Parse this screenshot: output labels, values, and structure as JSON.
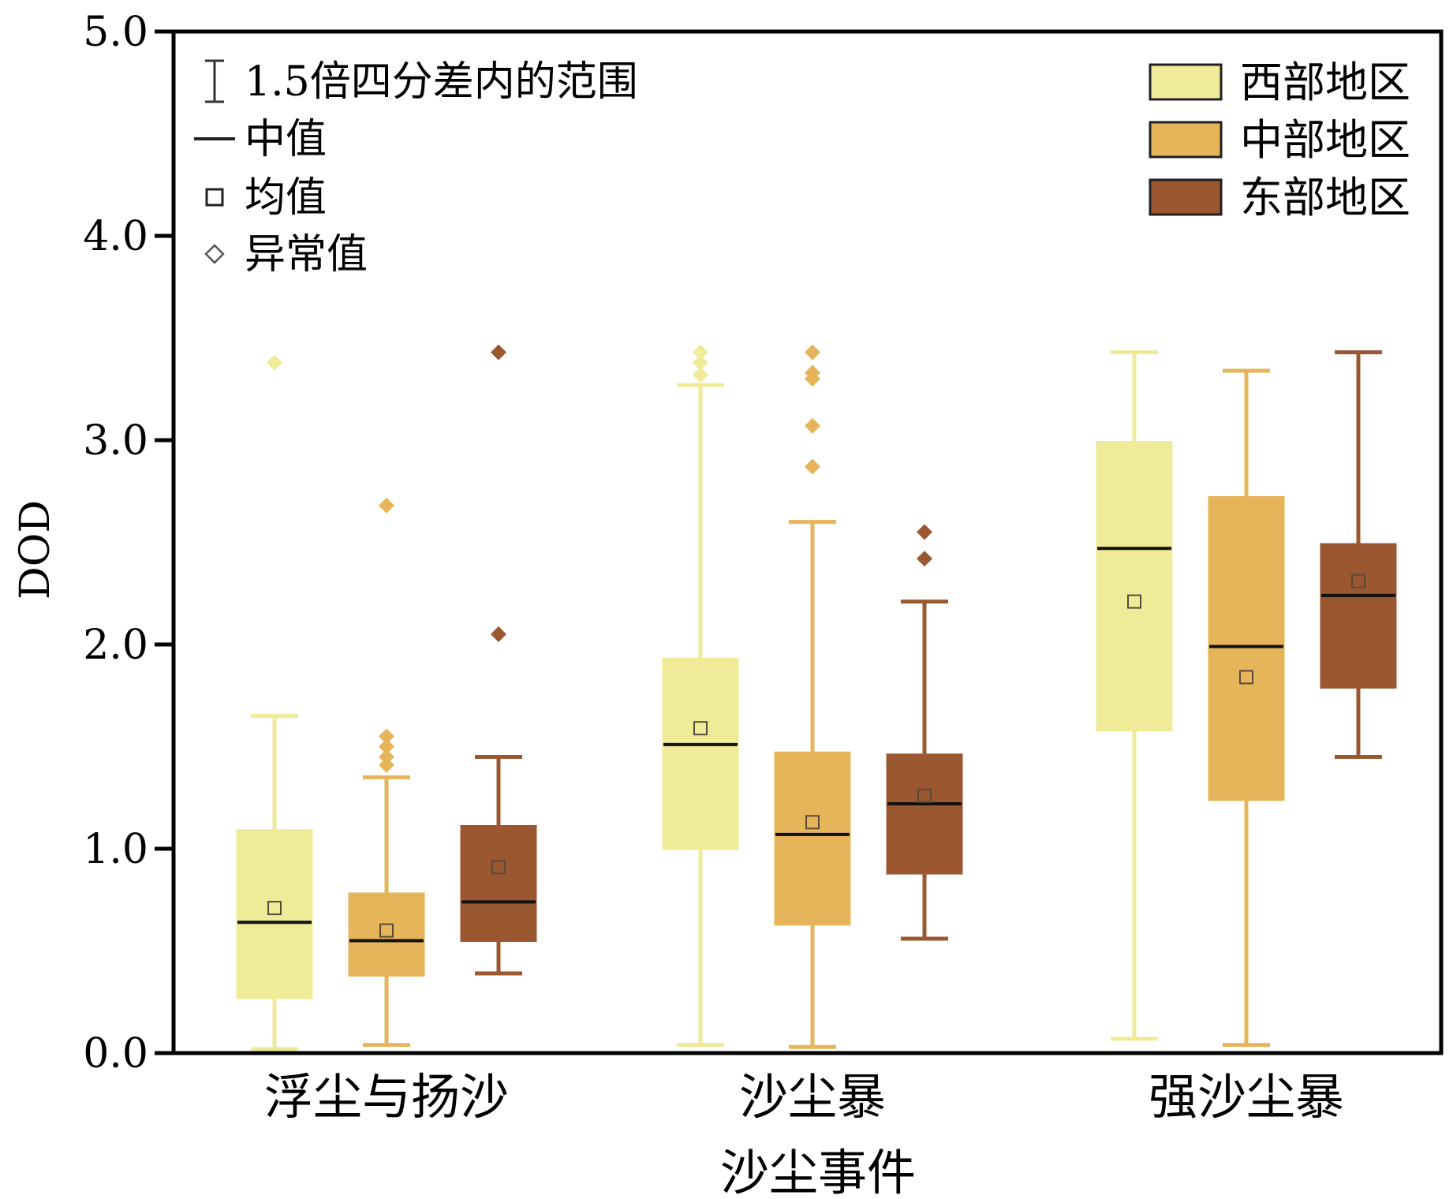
{
  "chart_data": {
    "type": "boxplot",
    "title": "",
    "xlabel": "沙尘事件",
    "ylabel": "DOD",
    "ylim": [
      0,
      5
    ],
    "yticks": [
      "0.0",
      "1.0",
      "2.0",
      "3.0",
      "4.0",
      "5.0"
    ],
    "grid": false,
    "categories": [
      "浮尘与扬沙",
      "沙尘暴",
      "强沙尘暴"
    ],
    "legend_left": [
      {
        "symbol": "whisker",
        "label": "1.5倍四分差内的范围"
      },
      {
        "symbol": "median-line",
        "label": "中值"
      },
      {
        "symbol": "mean-square",
        "label": "均值"
      },
      {
        "symbol": "outlier-diamond",
        "label": "异常值"
      }
    ],
    "legend_placement_left": "top-left",
    "legend_placement_right": "top-right",
    "series": [
      {
        "name": "西部地区",
        "color": "#F0EB98",
        "boxes": [
          {
            "whisker_low": 0.02,
            "q1": 0.27,
            "median": 0.64,
            "q3": 1.09,
            "whisker_high": 1.65,
            "mean": 0.71,
            "outliers": [
              3.38
            ]
          },
          {
            "whisker_low": 0.04,
            "q1": 1.0,
            "median": 1.51,
            "q3": 1.93,
            "whisker_high": 3.27,
            "mean": 1.59,
            "outliers": [
              3.32,
              3.38,
              3.43
            ]
          },
          {
            "whisker_low": 0.07,
            "q1": 1.58,
            "median": 2.47,
            "q3": 2.99,
            "whisker_high": 3.43,
            "mean": 2.21,
            "outliers": []
          }
        ]
      },
      {
        "name": "中部地区",
        "color": "#E6B55A",
        "boxes": [
          {
            "whisker_low": 0.04,
            "q1": 0.38,
            "median": 0.55,
            "q3": 0.78,
            "whisker_high": 1.35,
            "mean": 0.6,
            "outliers": [
              1.41,
              1.45,
              1.5,
              1.55,
              2.68
            ]
          },
          {
            "whisker_low": 0.03,
            "q1": 0.63,
            "median": 1.07,
            "q3": 1.47,
            "whisker_high": 2.6,
            "mean": 1.13,
            "outliers": [
              2.87,
              3.07,
              3.3,
              3.33,
              3.43
            ]
          },
          {
            "whisker_low": 0.04,
            "q1": 1.24,
            "median": 1.99,
            "q3": 2.72,
            "whisker_high": 3.34,
            "mean": 1.84,
            "outliers": []
          }
        ]
      },
      {
        "name": "东部地区",
        "color": "#9B5730",
        "boxes": [
          {
            "whisker_low": 0.39,
            "q1": 0.55,
            "median": 0.74,
            "q3": 1.11,
            "whisker_high": 1.45,
            "mean": 0.91,
            "outliers": [
              2.05,
              3.43
            ]
          },
          {
            "whisker_low": 0.56,
            "q1": 0.88,
            "median": 1.22,
            "q3": 1.46,
            "whisker_high": 2.21,
            "mean": 1.26,
            "outliers": [
              2.42,
              2.55
            ]
          },
          {
            "whisker_low": 1.45,
            "q1": 1.79,
            "median": 2.24,
            "q3": 2.49,
            "whisker_high": 3.43,
            "mean": 2.31,
            "outliers": []
          }
        ]
      }
    ]
  }
}
